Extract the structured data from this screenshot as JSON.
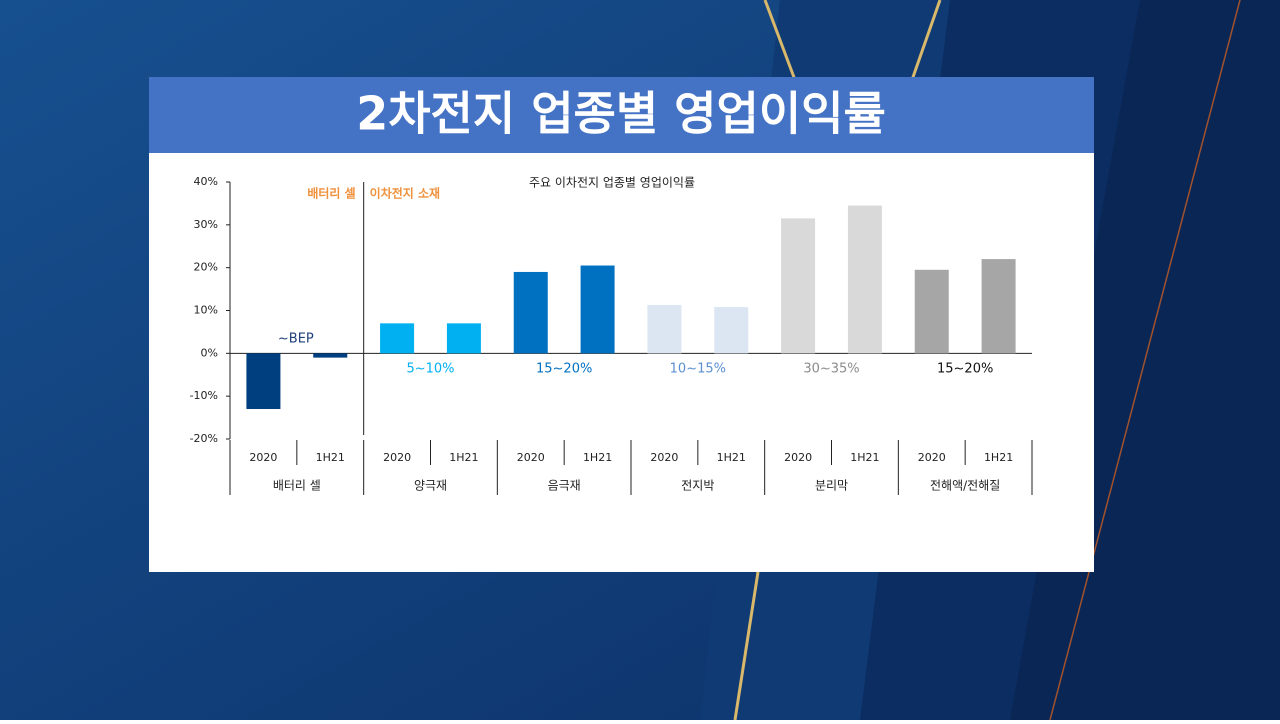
{
  "slide_title": "2차전지 업종별 영업이익률",
  "chart_data": {
    "type": "bar",
    "title": "주요 이차전지 업종별 영업이익률",
    "categories": [
      "2020",
      "1H21",
      "2020",
      "1H21",
      "2020",
      "1H21",
      "2020",
      "1H21",
      "2020",
      "1H21",
      "2020",
      "1H21"
    ],
    "values": [
      -13,
      -1,
      7,
      7,
      19,
      20.5,
      11.3,
      10.8,
      31.5,
      34.5,
      19.5,
      22
    ],
    "groups": [
      {
        "name": "배터리 셀",
        "color": "#003f7f",
        "range_label": "~BEP",
        "range_color": "#1f3f7a"
      },
      {
        "name": "양극재",
        "color": "#00b0f0",
        "range_label": "5~10%",
        "range_color": "#00b0f0"
      },
      {
        "name": "음극재",
        "color": "#0070c0",
        "range_label": "15~20%",
        "range_color": "#0070c0"
      },
      {
        "name": "전지박",
        "color": "#dce6f2",
        "range_label": "10~15%",
        "range_color": "#5b8fd1"
      },
      {
        "name": "분리막",
        "color": "#d9d9d9",
        "range_label": "30~35%",
        "range_color": "#8c8c8c"
      },
      {
        "name": "전해액/전해질",
        "color": "#a6a6a6",
        "range_label": "15~20%",
        "range_color": "#111111"
      }
    ],
    "segments": [
      "배터리 셀",
      "이차전지 소재"
    ],
    "segment_color": "#f0913c",
    "ylim": [
      -20,
      40
    ],
    "yticks": [
      {
        "value": -20,
        "label": "-20%"
      },
      {
        "value": -10,
        "label": "-10%"
      },
      {
        "value": 0,
        "label": "0%"
      },
      {
        "value": 10,
        "label": "10%"
      },
      {
        "value": 20,
        "label": "20%"
      },
      {
        "value": 30,
        "label": "30%"
      },
      {
        "value": 40,
        "label": "40%"
      }
    ]
  }
}
